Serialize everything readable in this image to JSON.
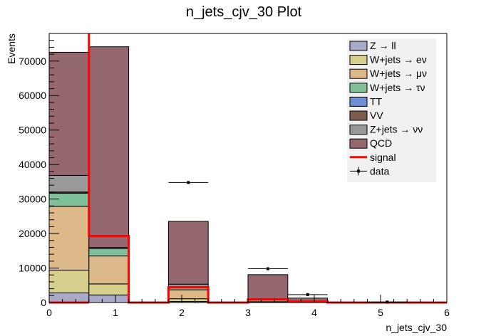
{
  "chart_data": {
    "type": "bar",
    "stacked": true,
    "title": "n_jets_cjv_30 Plot",
    "xlabel": "n_jets_cjv_30",
    "ylabel": "Events",
    "xlim": [
      0,
      6
    ],
    "ylim": [
      0,
      78000
    ],
    "x_ticks": [
      0,
      1,
      2,
      3,
      4,
      5,
      6
    ],
    "y_ticks": [
      0,
      10000,
      20000,
      30000,
      40000,
      50000,
      60000,
      70000
    ],
    "bin_edges": [
      0,
      0.6,
      1.2,
      1.8,
      2.4,
      3.0,
      3.6,
      4.2,
      4.8,
      5.4,
      6.0
    ],
    "series": [
      {
        "name": "Z → ll",
        "color": "#a9a9c8",
        "values": [
          2800,
          2200,
          0,
          300,
          0,
          100,
          0,
          0,
          0,
          0
        ]
      },
      {
        "name": "W+jets → eν",
        "color": "#d6cf8d",
        "values": [
          6600,
          3200,
          0,
          800,
          0,
          150,
          0,
          0,
          0,
          0
        ]
      },
      {
        "name": "W+jets → μν",
        "color": "#ddb889",
        "values": [
          18500,
          8100,
          0,
          2600,
          0,
          450,
          0,
          0,
          0,
          0
        ]
      },
      {
        "name": "W+jets → τν",
        "color": "#7fbf9a",
        "values": [
          3800,
          2200,
          0,
          800,
          0,
          200,
          0,
          0,
          0,
          0
        ]
      },
      {
        "name": "TT",
        "color": "#6f8fd6",
        "values": [
          50,
          40,
          0,
          20,
          0,
          5,
          0,
          0,
          0,
          0
        ]
      },
      {
        "name": "VV",
        "color": "#7d5d4e",
        "values": [
          300,
          200,
          0,
          100,
          0,
          30,
          0,
          0,
          0,
          0
        ]
      },
      {
        "name": "Z+jets → νν",
        "color": "#999999",
        "values": [
          4800,
          0,
          0,
          700,
          0,
          150,
          0,
          0,
          0,
          0
        ]
      },
      {
        "name": "QCD",
        "color": "#956870",
        "values": [
          35700,
          58200,
          0,
          18200,
          0,
          7000,
          1300,
          0,
          200,
          0
        ]
      }
    ],
    "signal": {
      "name": "signal",
      "color": "#ff0000",
      "values": [
        0,
        19300,
        0,
        4400,
        0,
        900,
        300,
        0,
        0,
        0
      ],
      "first_bin_offscale": true
    },
    "data": {
      "name": "data",
      "points": [
        {
          "x": 2.1,
          "y": 34800,
          "xerr": 0.3
        },
        {
          "x": 3.3,
          "y": 9800,
          "xerr": 0.3
        },
        {
          "x": 3.9,
          "y": 2300,
          "xerr": 0.3
        },
        {
          "x": 5.1,
          "y": 150,
          "xerr": 0.3
        }
      ]
    },
    "legend_position": "top-right",
    "grid": false
  }
}
